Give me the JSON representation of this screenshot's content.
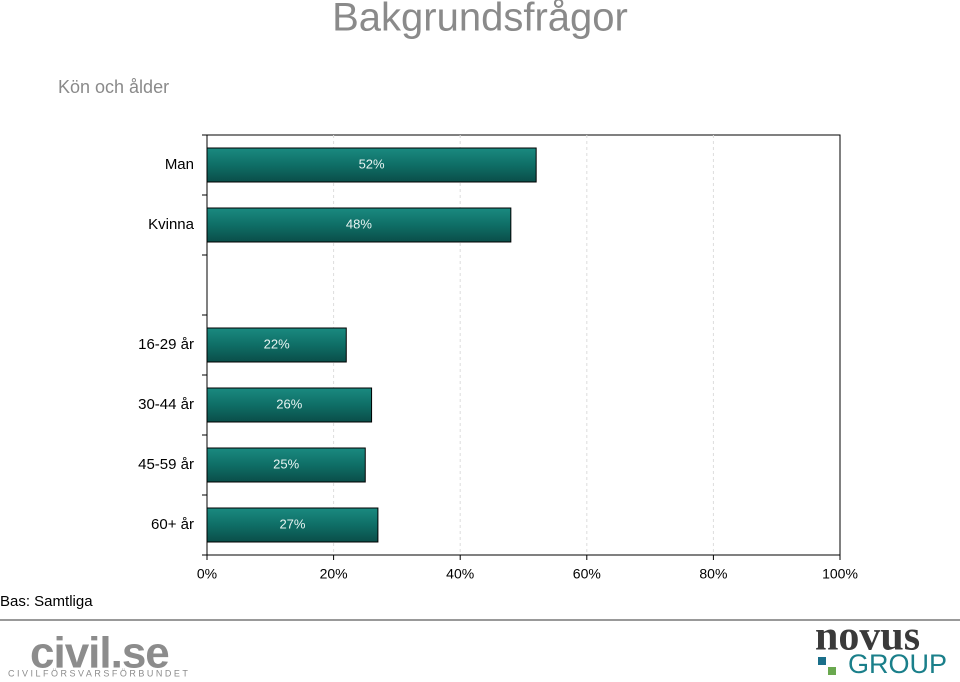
{
  "chart_data": {
    "type": "bar",
    "orientation": "horizontal",
    "title": "Bakgrundsfrågor",
    "subtitle": "Kön och ålder",
    "categories": [
      "Man",
      "Kvinna",
      null,
      "16-29 år",
      "30-44 år",
      "45-59 år",
      "60+ år"
    ],
    "values": [
      52,
      48,
      null,
      22,
      26,
      25,
      27
    ],
    "value_labels": [
      "52%",
      "48%",
      null,
      "22%",
      "26%",
      "25%",
      "27%"
    ],
    "color": "#0f6e66",
    "xlim": [
      0,
      100
    ],
    "xticks": [
      {
        "value": 0,
        "label": "0%"
      },
      {
        "value": 20,
        "label": "20%"
      },
      {
        "value": 40,
        "label": "40%"
      },
      {
        "value": 60,
        "label": "60%"
      },
      {
        "value": 80,
        "label": "80%"
      },
      {
        "value": 100,
        "label": "100%"
      }
    ],
    "grid": true,
    "note": "Bas: Samtliga"
  },
  "footer": {
    "left_logo": "civil.se",
    "left_logo_sub": "CIVILFÖRSVARSFÖRBUNDET",
    "right_logo": "novus",
    "right_logo_sub": "GROUP"
  }
}
